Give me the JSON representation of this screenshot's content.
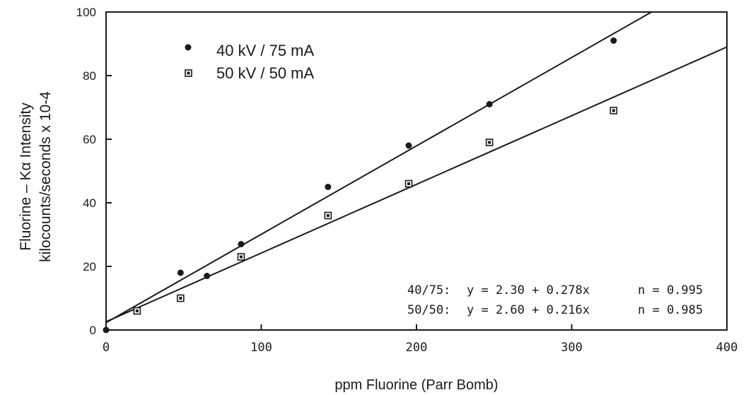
{
  "chart_data": {
    "type": "scatter",
    "xlabel": "ppm Fluorine (Parr Bomb)",
    "ylabel": [
      "Fluorine – Kα Intensity",
      "kilocounts/seconds x 10-4"
    ],
    "xlim": [
      0,
      400
    ],
    "ylim": [
      0,
      100
    ],
    "x_ticks": [
      0,
      100,
      200,
      300,
      400
    ],
    "y_ticks": [
      0,
      20,
      40,
      60,
      80,
      100
    ],
    "x_tick_labels": [
      "0",
      "100",
      "200",
      "300",
      "400"
    ],
    "y_tick_labels": [
      "0",
      "20",
      "40",
      "60",
      "80",
      "100"
    ],
    "grid": false,
    "legend_position": "top-left",
    "series": [
      {
        "name": "40 kV / 75 mA",
        "marker": "filled-circle",
        "x": [
          0,
          20,
          48,
          65,
          87,
          143,
          195,
          247,
          327
        ],
        "y": [
          0,
          6,
          18,
          17,
          27,
          45,
          58,
          71,
          91
        ],
        "fit": {
          "intercept": 2.3,
          "slope": 0.278
        }
      },
      {
        "name": "50 kV / 50 mA",
        "marker": "boxed-square",
        "x": [
          20,
          48,
          87,
          143,
          195,
          247,
          327
        ],
        "y": [
          6,
          10,
          23,
          36,
          46,
          59,
          69
        ],
        "fit": {
          "intercept": 2.6,
          "slope": 0.216
        }
      }
    ],
    "annotations": [
      {
        "label": "40/75:",
        "equation": "y = 2.30 + 0.278x",
        "r": "n = 0.995"
      },
      {
        "label": "50/50:",
        "equation": "y = 2.60 + 0.216x",
        "r": "n = 0.985"
      }
    ],
    "colors": {
      "ink": "#1a1a1a",
      "background": "#ffffff"
    }
  }
}
